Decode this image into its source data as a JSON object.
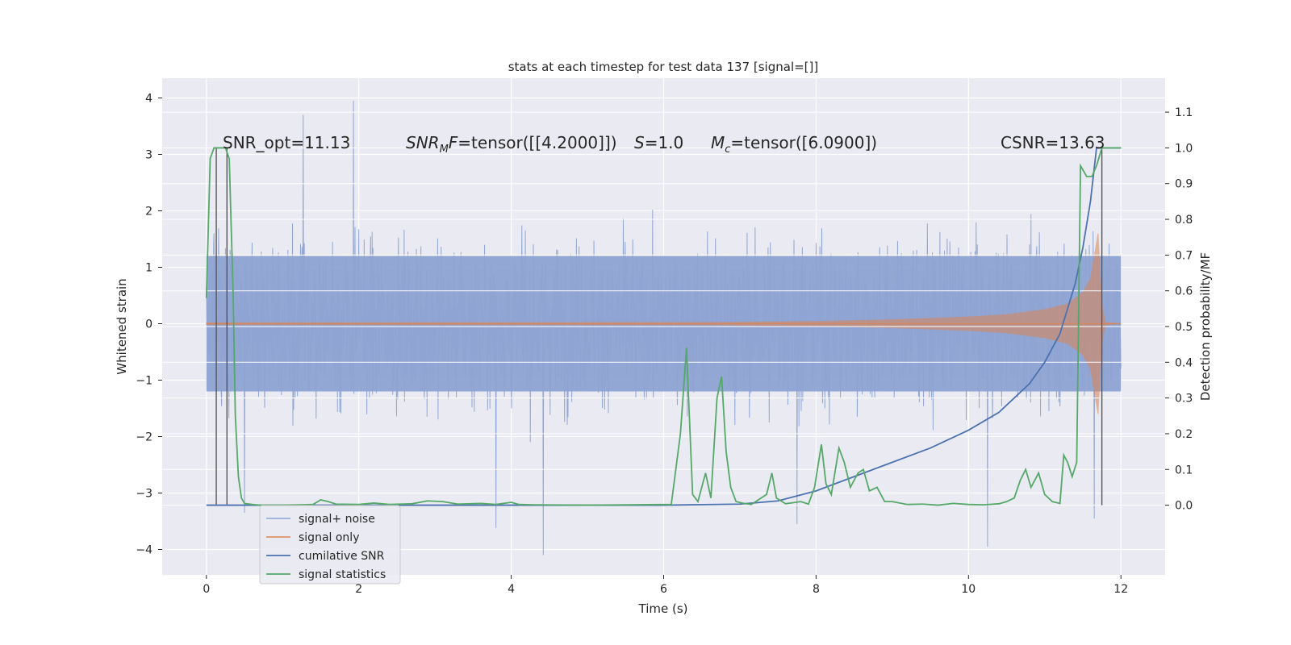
{
  "chart_data": {
    "type": "line",
    "title": "stats at each timestep for test data 137 [signal=[]]",
    "xlabel": "Time (s)",
    "ylabel_left": "Whitened strain",
    "ylabel_right": "Detection probability/MF",
    "xlim": [
      -0.58,
      12.58
    ],
    "ylim_left": [
      -4.45,
      4.35
    ],
    "ylim_right": [
      -0.195,
      1.195
    ],
    "x_ticks": [
      0,
      2,
      4,
      6,
      8,
      10,
      12
    ],
    "y_left_ticks": [
      -4,
      -3,
      -2,
      -1,
      0,
      1,
      2,
      3,
      4
    ],
    "y_right_ticks": [
      0.0,
      0.1,
      0.2,
      0.3,
      0.4,
      0.5,
      0.6,
      0.7,
      0.8,
      0.9,
      1.0,
      1.1
    ],
    "grid": true,
    "legend_location": "lower-left",
    "colors": {
      "signal_noise": "#8ea3d3",
      "signal_only": "#dd8452",
      "cumulative_snr": "#4c72b0",
      "signal_statistics": "#55a868",
      "vlines": "#555555",
      "plot_bg": "#eaeaf2"
    },
    "annotations": {
      "snr_opt": "SNR_opt=11.13",
      "snr_mf_label": "SNR",
      "snr_mf_sub": "M",
      "snr_mf_label2": "F",
      "snr_mf_value": "=tensor([[4.2000]])",
      "s_label": "S",
      "s_value": "=1.0",
      "mc_label": "M",
      "mc_sub": "c",
      "mc_value": "=tensor([6.0900])",
      "csnr": "CSNR=13.63"
    },
    "vertical_lines_x": [
      0.13,
      0.27,
      11.75
    ],
    "series": [
      {
        "name": "signal+ noise",
        "axis": "left",
        "x_range": [
          0,
          12
        ],
        "envelope_abs_typical": 1.8,
        "extremes": [
          {
            "x": 1.93,
            "y": 3.95
          },
          {
            "x": 1.27,
            "y": 3.7
          },
          {
            "x": 11.65,
            "y": 3.95
          },
          {
            "x": 4.42,
            "y": -4.1
          },
          {
            "x": 10.25,
            "y": -3.95
          },
          {
            "x": 3.8,
            "y": -3.62
          },
          {
            "x": 0.5,
            "y": -3.35
          },
          {
            "x": 7.75,
            "y": -3.55
          },
          {
            "x": 11.65,
            "y": -3.45
          }
        ]
      },
      {
        "name": "signal only",
        "axis": "left",
        "x": [
          0,
          6.5,
          8.0,
          9.0,
          10.0,
          10.5,
          11.0,
          11.3,
          11.5,
          11.6,
          11.7,
          11.75,
          11.8,
          12.0
        ],
        "amplitude": [
          0.015,
          0.02,
          0.04,
          0.07,
          0.12,
          0.16,
          0.25,
          0.35,
          0.55,
          0.8,
          1.6,
          0.3,
          0.02,
          0.0
        ]
      },
      {
        "name": "cumilative SNR",
        "axis": "right",
        "x": [
          0,
          6.0,
          7.0,
          7.5,
          8.0,
          8.5,
          9.0,
          9.5,
          10.0,
          10.4,
          10.8,
          11.0,
          11.2,
          11.4,
          11.5,
          11.6,
          11.68,
          11.72,
          12.0
        ],
        "values": [
          0.0,
          0.0,
          0.003,
          0.012,
          0.04,
          0.08,
          0.12,
          0.16,
          0.21,
          0.26,
          0.34,
          0.4,
          0.48,
          0.62,
          0.72,
          0.85,
          1.0,
          1.0,
          1.0
        ]
      },
      {
        "name": "signal statistics",
        "axis": "right",
        "x": [
          0.0,
          0.05,
          0.1,
          0.15,
          0.2,
          0.25,
          0.3,
          0.35,
          0.38,
          0.42,
          0.46,
          0.5,
          0.6,
          0.7,
          1.0,
          1.4,
          1.5,
          1.6,
          1.7,
          2.0,
          2.2,
          2.4,
          2.7,
          2.9,
          3.1,
          3.3,
          3.6,
          3.8,
          4.0,
          4.1,
          4.3,
          5.0,
          6.1,
          6.22,
          6.3,
          6.38,
          6.45,
          6.55,
          6.62,
          6.7,
          6.76,
          6.82,
          6.88,
          6.95,
          7.05,
          7.15,
          7.35,
          7.42,
          7.48,
          7.6,
          7.8,
          7.9,
          7.98,
          8.07,
          8.13,
          8.2,
          8.3,
          8.37,
          8.45,
          8.55,
          8.62,
          8.7,
          8.8,
          8.9,
          9.0,
          9.2,
          9.4,
          9.6,
          9.8,
          10.0,
          10.2,
          10.4,
          10.5,
          10.6,
          10.68,
          10.75,
          10.82,
          10.92,
          11.0,
          11.1,
          11.2,
          11.25,
          11.3,
          11.36,
          11.42,
          11.47,
          11.55,
          11.62,
          11.68,
          11.75,
          11.85,
          12.0
        ],
        "values": [
          0.58,
          0.97,
          1.0,
          1.0,
          1.0,
          1.0,
          0.97,
          0.6,
          0.25,
          0.08,
          0.02,
          0.005,
          0.002,
          0.0,
          0.0,
          0.002,
          0.015,
          0.01,
          0.003,
          0.002,
          0.006,
          0.002,
          0.004,
          0.012,
          0.01,
          0.003,
          0.005,
          0.002,
          0.008,
          0.002,
          0.001,
          0.0,
          0.002,
          0.2,
          0.44,
          0.03,
          0.01,
          0.09,
          0.02,
          0.3,
          0.36,
          0.15,
          0.05,
          0.01,
          0.005,
          0.002,
          0.03,
          0.09,
          0.02,
          0.004,
          0.01,
          0.003,
          0.05,
          0.17,
          0.06,
          0.03,
          0.16,
          0.12,
          0.05,
          0.09,
          0.1,
          0.04,
          0.05,
          0.01,
          0.01,
          0.002,
          0.003,
          0.0,
          0.005,
          0.002,
          0.001,
          0.004,
          0.01,
          0.02,
          0.07,
          0.1,
          0.05,
          0.09,
          0.03,
          0.01,
          0.005,
          0.14,
          0.12,
          0.08,
          0.12,
          0.95,
          0.92,
          0.92,
          0.95,
          1.0,
          1.0,
          1.0
        ]
      }
    ]
  }
}
